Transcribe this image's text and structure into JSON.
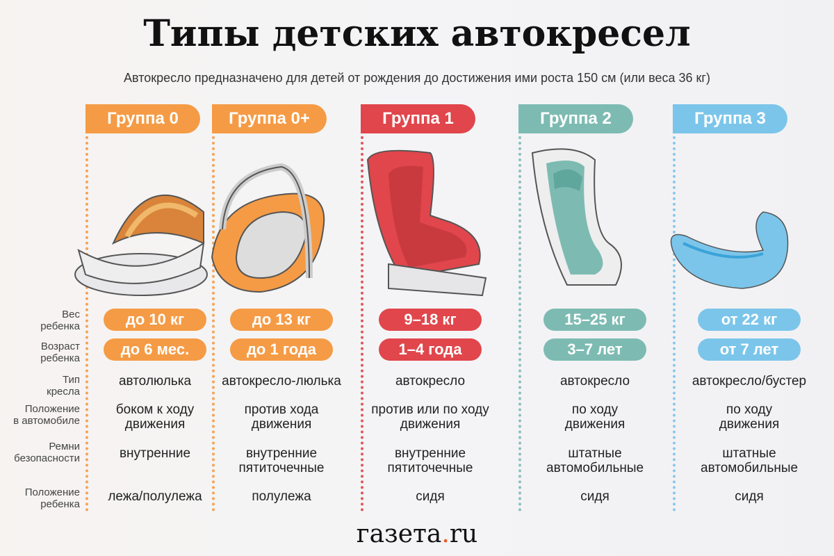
{
  "title": "Типы детских автокресел",
  "subtitle": "Автокресло предназначено для детей от рождения до достижения ими роста 150 см (или веса 36 кг)",
  "row_labels": [
    {
      "l1": "Вес",
      "l2": "ребенка"
    },
    {
      "l1": "Возраст",
      "l2": "ребенка"
    },
    {
      "l1": "Тип",
      "l2": "кресла"
    },
    {
      "l1": "Положение",
      "l2": "в автомобиле"
    },
    {
      "l1": "Ремни",
      "l2": "безопасности"
    },
    {
      "l1": "Положение",
      "l2": "ребенка"
    }
  ],
  "groups": [
    {
      "name": "Группа 0",
      "color": "#f59b45",
      "weight": "до 10 кг",
      "age": "до 6 мес.",
      "type": "автолюлька",
      "position": "боком к ходу движения",
      "belts": "внутренние",
      "child": "лежа/полулежа",
      "icon": "carrycot-icon"
    },
    {
      "name": "Группа 0+",
      "color": "#f59b45",
      "weight": "до 13 кг",
      "age": "до 1 года",
      "type": "автокресло-люлька",
      "position": "против хода движения",
      "belts": "внутренние пятиточечные",
      "child": "полулежа",
      "icon": "infant-carrier-icon"
    },
    {
      "name": "Группа 1",
      "color": "#e0464b",
      "weight": "9–18 кг",
      "age": "1–4 года",
      "type": "автокресло",
      "position": "против или по ходу движения",
      "belts": "внутренние пятиточечные",
      "child": "сидя",
      "icon": "child-seat-icon"
    },
    {
      "name": "Группа 2",
      "color": "#7dbbb2",
      "weight": "15–25 кг",
      "age": "3–7 лет",
      "type": "автокресло",
      "position": "по ходу движения",
      "belts": "штатные автомобильные",
      "child": "сидя",
      "icon": "highback-seat-icon"
    },
    {
      "name": "Группа 3",
      "color": "#7cc5ea",
      "weight": "от 22 кг",
      "age": "от 7 лет",
      "type": "автокресло/бустер",
      "position": "по ходу движения",
      "belts": "штатные автомобильные",
      "child": "сидя",
      "icon": "booster-icon"
    }
  ],
  "logo": {
    "main": "газета",
    "dot": ".",
    "tld": "ru"
  }
}
